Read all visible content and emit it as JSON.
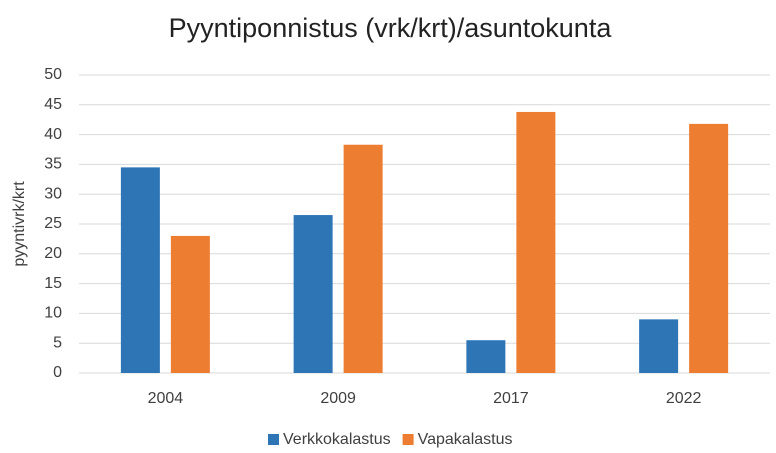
{
  "chart_data": {
    "type": "bar",
    "title": "Pyyntiponnistus (vrk/krt)/asuntokunta",
    "y_label": "pyyntivrk/krt",
    "categories": [
      "2004",
      "2009",
      "2017",
      "2022"
    ],
    "series": [
      {
        "name": "Verkkokalastus",
        "color": "#2e75b6",
        "values": [
          34.5,
          26.5,
          5.5,
          9
        ]
      },
      {
        "name": "Vapakalastus",
        "color": "#ed7d31",
        "values": [
          23,
          38.3,
          43.8,
          41.8
        ]
      }
    ],
    "ylim": [
      0,
      50
    ],
    "yticks": [
      0,
      5,
      10,
      15,
      20,
      25,
      30,
      35,
      40,
      45,
      50
    ],
    "grid": true,
    "legend": "bottom"
  }
}
